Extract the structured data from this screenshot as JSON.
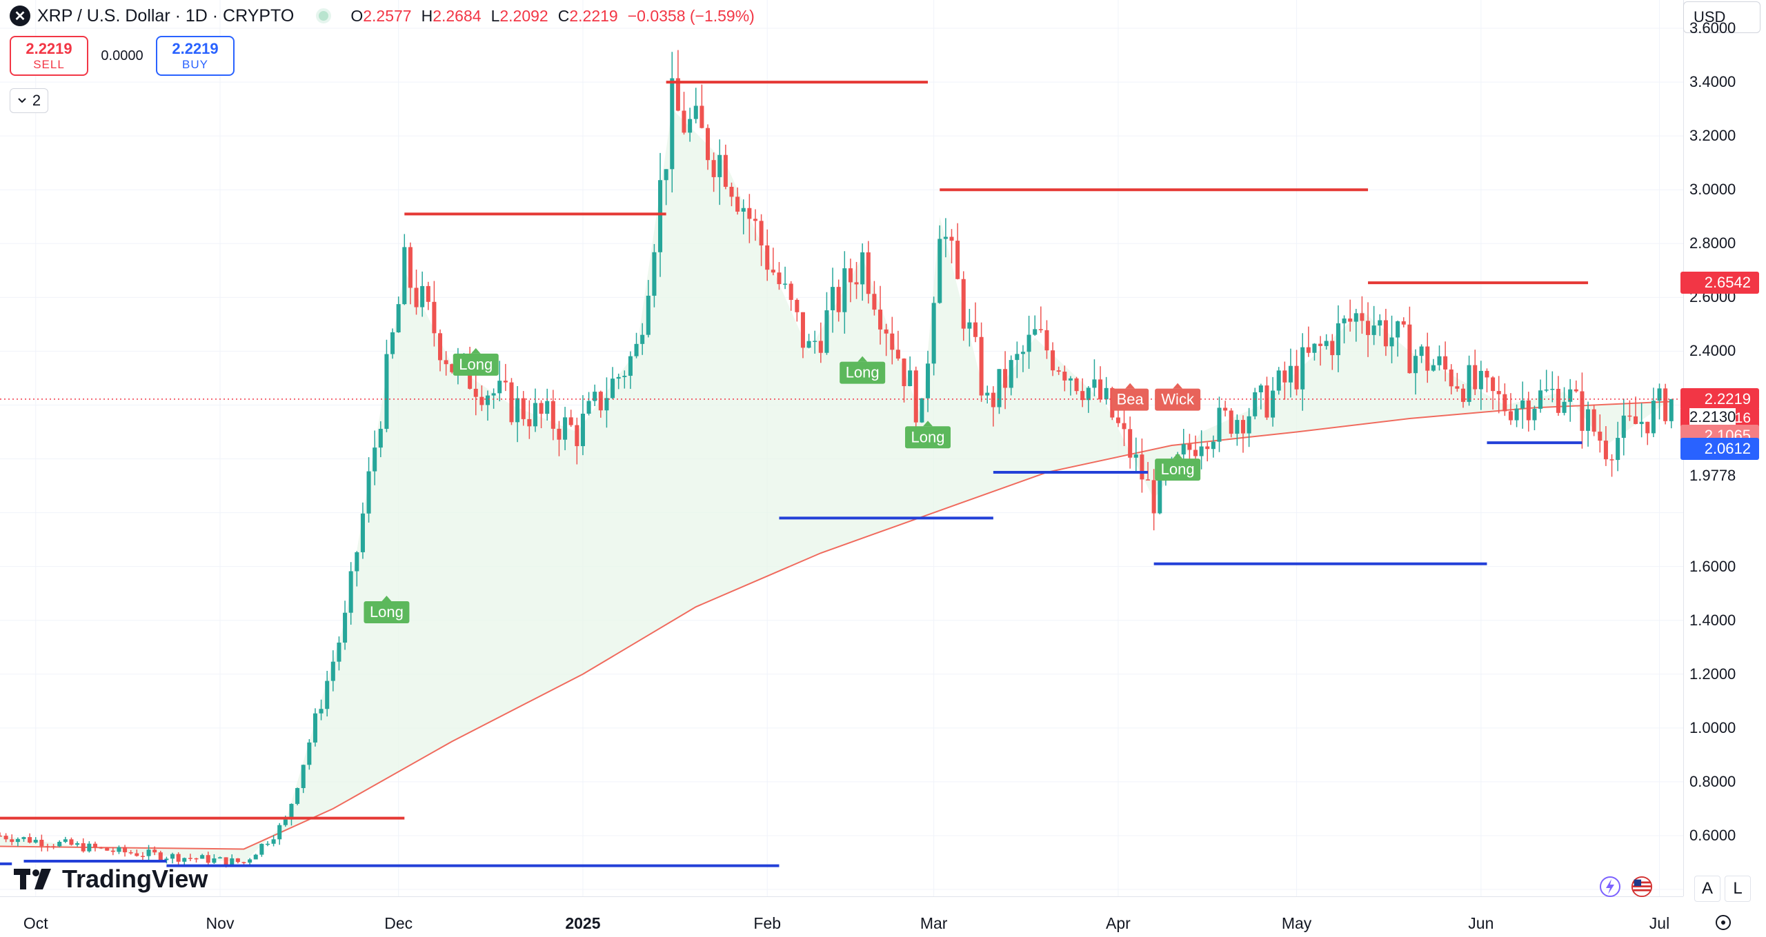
{
  "header": {
    "symbol_title": "XRP / U.S. Dollar · 1D · CRYPTO",
    "logo_icon": "xrp-logo-icon",
    "ohlc": [
      {
        "key": "O",
        "value": "2.2577"
      },
      {
        "key": "H",
        "value": "2.2684"
      },
      {
        "key": "L",
        "value": "2.2092"
      },
      {
        "key": "C",
        "value": "2.2219"
      }
    ],
    "change": "−0.0358 (−1.59%)"
  },
  "trade": {
    "sell_price": "2.2219",
    "sell_label": "SELL",
    "spread": "0.0000",
    "buy_price": "2.2219",
    "buy_label": "BUY"
  },
  "indicator_toggle": {
    "icon": "chevron-down-icon",
    "count": "2"
  },
  "brand": {
    "name": "TradingView"
  },
  "currency": "USD",
  "price_axis": {
    "ticks": [
      "3.6000",
      "3.4000",
      "3.2000",
      "3.0000",
      "2.8000",
      "2.6000",
      "2.4000",
      "1.6000",
      "1.4000",
      "1.2000",
      "1.0000",
      "0.8000",
      "0.6000"
    ],
    "labels": {
      "resistance": "2.6542",
      "last": "2.2219",
      "countdown": "15:32:16",
      "ma": "2.2130",
      "support_red": "2.1065",
      "support_blue": "2.0612",
      "low": "1.9778"
    }
  },
  "time_axis": {
    "labels": [
      {
        "text": "Oct",
        "bold": false
      },
      {
        "text": "Nov",
        "bold": false
      },
      {
        "text": "Dec",
        "bold": false
      },
      {
        "text": "2025",
        "bold": true
      },
      {
        "text": "Feb",
        "bold": false
      },
      {
        "text": "Mar",
        "bold": false
      },
      {
        "text": "Apr",
        "bold": false
      },
      {
        "text": "May",
        "bold": false
      },
      {
        "text": "Jun",
        "bold": false
      },
      {
        "text": "Jul",
        "bold": false
      }
    ]
  },
  "bottom_right": {
    "a_label": "A",
    "l_label": "L"
  },
  "chart_data": {
    "type": "candlestick",
    "y_range": [
      0.4,
      3.7
    ],
    "x_range": [
      "2024-09-25",
      "2025-07-05"
    ],
    "colors": {
      "up": "#26a69a",
      "down": "#ef5350",
      "resistance": "#e53935",
      "support": "#2340d8",
      "ma": "#f06a5d",
      "signal": "#5cb85c"
    },
    "price_path": [
      [
        "2024-09-25",
        0.6
      ],
      [
        "2024-10-15",
        0.54
      ],
      [
        "2024-11-05",
        0.5
      ],
      [
        "2024-11-12",
        0.65
      ],
      [
        "2024-11-22",
        1.4
      ],
      [
        "2024-12-02",
        2.7
      ],
      [
        "2024-12-10",
        2.35
      ],
      [
        "2024-12-20",
        2.2
      ],
      [
        "2024-12-31",
        2.1
      ],
      [
        "2025-01-10",
        2.4
      ],
      [
        "2025-01-16",
        3.3
      ],
      [
        "2025-01-25",
        3.1
      ],
      [
        "2025-02-02",
        2.7
      ],
      [
        "2025-02-08",
        2.4
      ],
      [
        "2025-02-17",
        2.75
      ],
      [
        "2025-02-27",
        2.15
      ],
      [
        "2025-03-02",
        2.9
      ],
      [
        "2025-03-10",
        2.2
      ],
      [
        "2025-03-18",
        2.45
      ],
      [
        "2025-03-30",
        2.2
      ],
      [
        "2025-04-07",
        1.85
      ],
      [
        "2025-04-15",
        2.1
      ],
      [
        "2025-04-25",
        2.2
      ],
      [
        "2025-05-12",
        2.55
      ],
      [
        "2025-05-20",
        2.4
      ],
      [
        "2025-06-05",
        2.2
      ],
      [
        "2025-06-15",
        2.25
      ],
      [
        "2025-06-22",
        2.05
      ],
      [
        "2025-07-03",
        2.2219
      ]
    ],
    "moving_average": [
      [
        "2024-09-25",
        0.56
      ],
      [
        "2024-11-05",
        0.55
      ],
      [
        "2024-11-20",
        0.7
      ],
      [
        "2024-12-10",
        0.95
      ],
      [
        "2025-01-01",
        1.2
      ],
      [
        "2025-01-20",
        1.45
      ],
      [
        "2025-02-10",
        1.65
      ],
      [
        "2025-03-01",
        1.8
      ],
      [
        "2025-03-20",
        1.95
      ],
      [
        "2025-04-10",
        2.05
      ],
      [
        "2025-05-01",
        2.1
      ],
      [
        "2025-05-20",
        2.15
      ],
      [
        "2025-06-10",
        2.19
      ],
      [
        "2025-07-03",
        2.213
      ]
    ],
    "resistance_levels": [
      {
        "price": 0.665,
        "from": "2024-09-25",
        "to": "2024-12-02"
      },
      {
        "price": 2.91,
        "from": "2024-12-02",
        "to": "2025-01-15"
      },
      {
        "price": 3.4,
        "from": "2025-01-15",
        "to": "2025-02-28"
      },
      {
        "price": 3.0,
        "from": "2025-03-02",
        "to": "2025-05-13"
      },
      {
        "price": 2.6542,
        "from": "2025-05-13",
        "to": "2025-06-19"
      }
    ],
    "support_levels": [
      {
        "price": 0.495,
        "from": "2024-09-25",
        "to": "2024-09-27"
      },
      {
        "price": 0.505,
        "from": "2024-09-29",
        "to": "2024-10-23"
      },
      {
        "price": 0.488,
        "from": "2024-10-23",
        "to": "2025-02-03"
      },
      {
        "price": 1.78,
        "from": "2025-02-03",
        "to": "2025-03-11"
      },
      {
        "price": 1.95,
        "from": "2025-03-11",
        "to": "2025-04-06"
      },
      {
        "price": 1.61,
        "from": "2025-04-07",
        "to": "2025-06-02"
      },
      {
        "price": 2.06,
        "from": "2025-06-02",
        "to": "2025-06-18"
      }
    ],
    "signals": [
      {
        "text": "Long",
        "date": "2024-11-29",
        "price": 1.43
      },
      {
        "text": "Long",
        "date": "2024-12-14",
        "price": 2.35
      },
      {
        "text": "Long",
        "date": "2025-02-17",
        "price": 2.32
      },
      {
        "text": "Long",
        "date": "2025-02-28",
        "price": 2.08
      },
      {
        "text": "Long",
        "date": "2025-04-11",
        "price": 1.96
      }
    ],
    "overlapping_tags": [
      {
        "text": "Bea",
        "date": "2025-04-03",
        "price": 2.22
      },
      {
        "text": "Wick",
        "date": "2025-04-11",
        "price": 2.22
      }
    ]
  }
}
